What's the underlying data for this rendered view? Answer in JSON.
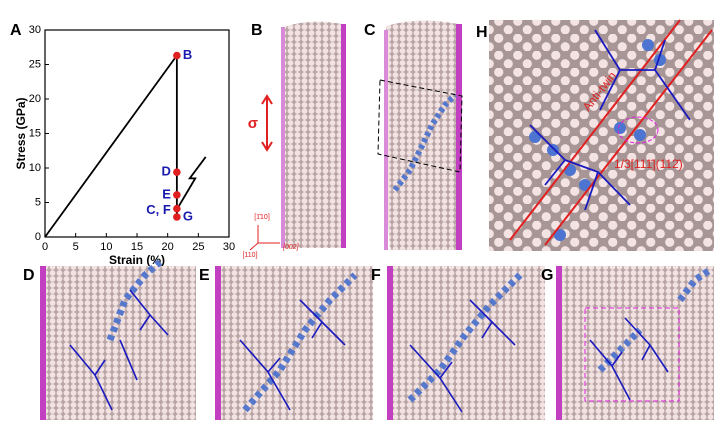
{
  "chart_data": {
    "type": "line",
    "panel_label": "A",
    "xlabel": "Strain (%)",
    "ylabel": "Stress (GPa)",
    "x": [
      0,
      21.5,
      21.5
    ],
    "series": [
      {
        "color": "#000000",
        "values": [
          0,
          26.3,
          3.0
        ]
      }
    ],
    "markers": {
      "color": "#e02020",
      "label_color": "#1a1ab0",
      "points": [
        {
          "label": "B",
          "x": 21.5,
          "y": 26.3
        },
        {
          "label": "D",
          "x": 21.5,
          "y": 9.4
        },
        {
          "label": "E",
          "x": 21.5,
          "y": 6.1
        },
        {
          "label": "C, F",
          "x": 21.5,
          "y": 4.1
        },
        {
          "label": "G",
          "x": 21.5,
          "y": 2.9
        }
      ]
    },
    "xlim": [
      0,
      30
    ],
    "ylim": [
      0,
      30
    ],
    "xticks": [
      0,
      5,
      10,
      15,
      20,
      25,
      30
    ],
    "yticks": [
      0,
      5,
      10,
      15,
      20,
      25,
      30
    ]
  },
  "panels": {
    "B": {
      "label": "B",
      "stress_symbol": "σ",
      "axes": [
        "[1̄10]",
        "[002]",
        "[110]"
      ]
    },
    "C": {
      "label": "C"
    },
    "H": {
      "label": "H",
      "annotations": [
        "Anti-twin",
        "1/3[111̄](112̄)"
      ]
    },
    "D": {
      "label": "D"
    },
    "E": {
      "label": "E"
    },
    "F": {
      "label": "F"
    },
    "G": {
      "label": "G"
    }
  }
}
